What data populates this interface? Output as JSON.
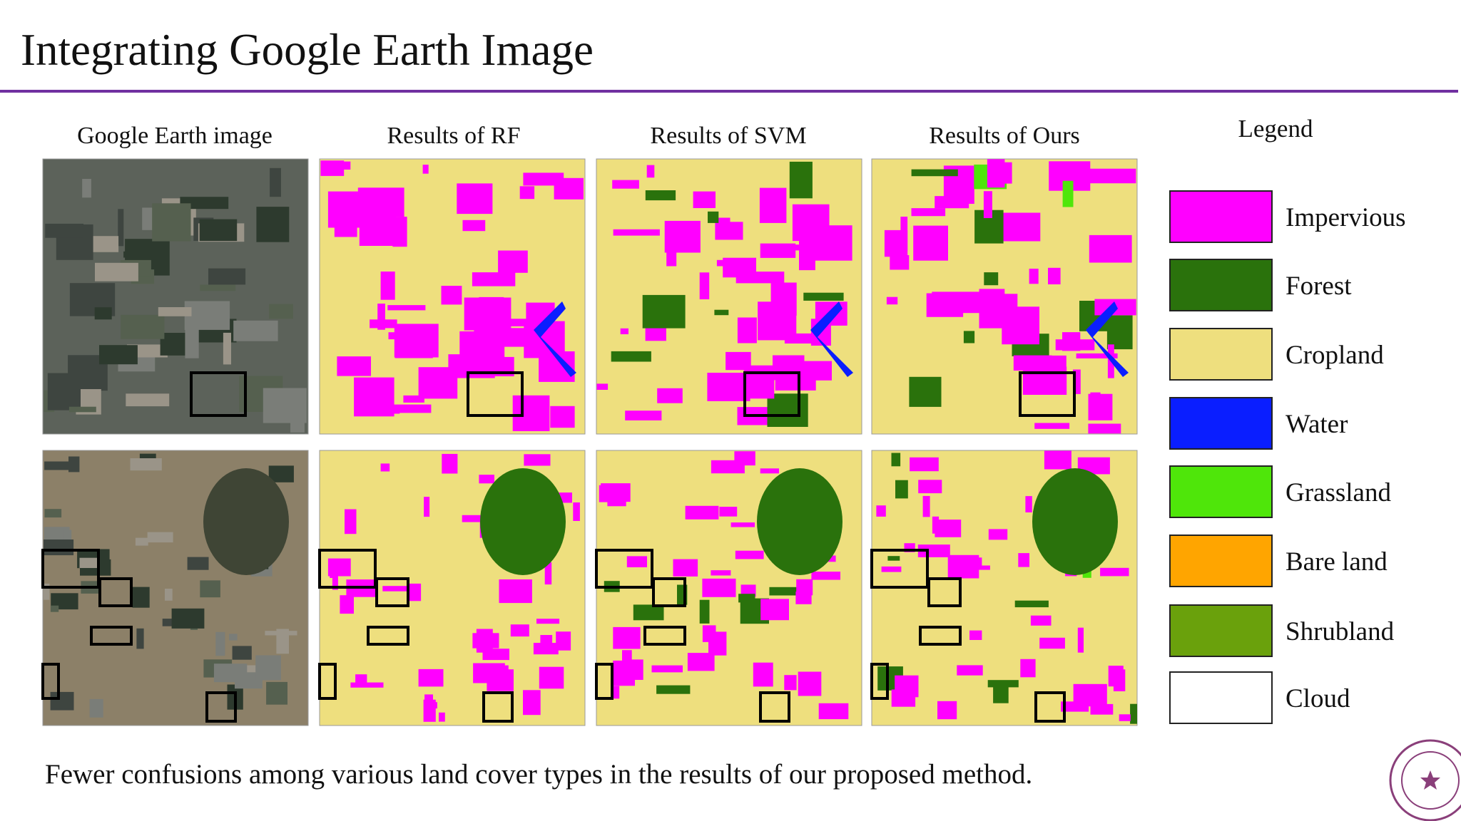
{
  "header": {
    "title": "Integrating Google Earth Image"
  },
  "columns": [
    "Google Earth image",
    "Results of RF",
    "Results of  SVM",
    "Results of Ours"
  ],
  "legend": {
    "title": "Legend",
    "items": [
      {
        "name": "Impervious",
        "color": "#ff00ff"
      },
      {
        "name": "Forest",
        "color": "#2a720c"
      },
      {
        "name": "Cropland",
        "color": "#eedf7e"
      },
      {
        "name": "Water",
        "color": "#0a1eff"
      },
      {
        "name": "Grassland",
        "color": "#4fe60a"
      },
      {
        "name": "Bare land",
        "color": "#ffa500"
      },
      {
        "name": "Shrubland",
        "color": "#6aa10c"
      },
      {
        "name": "Cloud",
        "color": "#ffffff"
      }
    ]
  },
  "caption": "Fewer confusions  among various land cover types in the results of our proposed method."
}
